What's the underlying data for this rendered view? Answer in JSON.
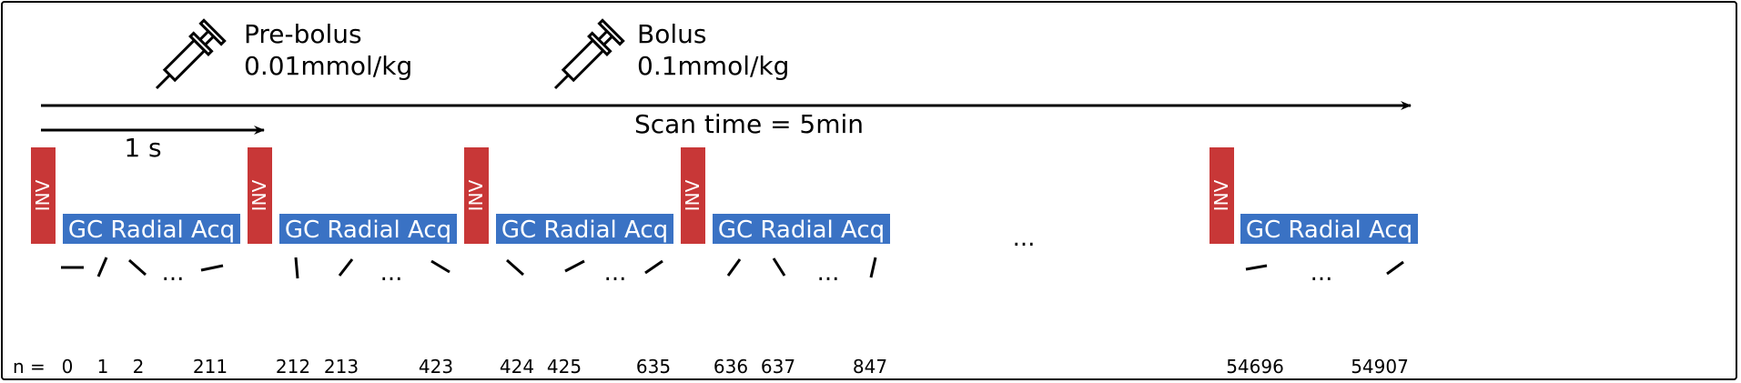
{
  "injections": [
    {
      "icon": "syringe-icon",
      "label": "Pre-bolus",
      "dose": "0.01mmol/kg"
    },
    {
      "icon": "syringe-icon",
      "label": "Bolus",
      "dose": "0.1mmol/kg"
    }
  ],
  "scan_time_label": "Scan time = 5min",
  "interval_label": "1 s",
  "inv_label": "INV",
  "acq_label": "GC Radial Acq",
  "gap_ellipsis": "...",
  "n_prefix": "n =",
  "ellipsis": "...",
  "groups": [
    {
      "spokes": [
        "0",
        "1",
        "2",
        "211"
      ]
    },
    {
      "spokes": [
        "212",
        "213",
        "423"
      ]
    },
    {
      "spokes": [
        "424",
        "425",
        "635"
      ]
    },
    {
      "spokes": [
        "636",
        "637",
        "847"
      ]
    },
    {
      "spokes": [
        "54696",
        "54907"
      ]
    }
  ],
  "colors": {
    "inv": "#c83737",
    "acq": "#3a72c4",
    "line": "#000000"
  }
}
